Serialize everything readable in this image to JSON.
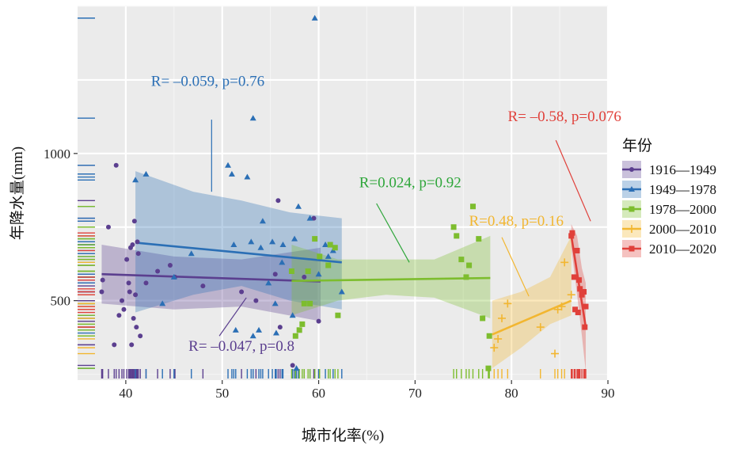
{
  "chart_data": {
    "type": "scatter",
    "title": "",
    "xlabel": "城市化率(%)",
    "ylabel": "年降水量(mm)",
    "xlim": [
      35,
      90
    ],
    "ylim": [
      230,
      1500
    ],
    "xticks": [
      40,
      50,
      60,
      70,
      80,
      90
    ],
    "yticks": [
      500,
      1000
    ],
    "x_tick_labels": [
      "40",
      "50",
      "60",
      "70",
      "80",
      "90"
    ],
    "y_tick_labels": [
      "500",
      "1000"
    ],
    "grid": true,
    "legend": {
      "title": "年份",
      "position": "right"
    },
    "series": [
      {
        "name": "1916—1949",
        "color": "#5b3f8f",
        "marker": "circle",
        "points": [
          [
            37.5,
            530
          ],
          [
            37.6,
            570
          ],
          [
            38.2,
            750
          ],
          [
            38.8,
            350
          ],
          [
            39,
            960
          ],
          [
            39.3,
            450
          ],
          [
            39.6,
            500
          ],
          [
            39.8,
            470
          ],
          [
            40.1,
            640
          ],
          [
            40.3,
            560
          ],
          [
            40.4,
            530
          ],
          [
            40.5,
            680
          ],
          [
            40.6,
            350
          ],
          [
            40.7,
            690
          ],
          [
            40.8,
            440
          ],
          [
            40.9,
            770
          ],
          [
            41.0,
            520
          ],
          [
            41.1,
            410
          ],
          [
            41.2,
            700
          ],
          [
            41.5,
            380
          ],
          [
            43.3,
            600
          ],
          [
            44.6,
            620
          ],
          [
            45.1,
            580
          ],
          [
            48.0,
            550
          ],
          [
            52.0,
            530
          ],
          [
            53.5,
            500
          ],
          [
            55.5,
            590
          ],
          [
            55.8,
            840
          ],
          [
            56.0,
            410
          ],
          [
            57.3,
            280
          ],
          [
            58.5,
            580
          ],
          [
            59.5,
            780
          ],
          [
            60.0,
            430
          ],
          [
            41.3,
            660
          ],
          [
            42.1,
            560
          ]
        ],
        "fit": {
          "x": [
            37.5,
            60.2
          ],
          "y": [
            590,
            565
          ]
        },
        "ci": {
          "x": [
            37.5,
            45,
            52,
            60.2
          ],
          "upper": [
            690,
            650,
            640,
            680
          ],
          "lower": [
            490,
            470,
            480,
            430
          ]
        }
      },
      {
        "name": "1949—1978",
        "color": "#2b6fb5",
        "marker": "triangle",
        "points": [
          [
            41.0,
            910
          ],
          [
            42.1,
            930
          ],
          [
            43.8,
            490
          ],
          [
            45.0,
            580
          ],
          [
            46.8,
            660
          ],
          [
            50.6,
            960
          ],
          [
            51.0,
            930
          ],
          [
            51.2,
            690
          ],
          [
            51.4,
            400
          ],
          [
            52.6,
            920
          ],
          [
            53.0,
            700
          ],
          [
            53.2,
            380
          ],
          [
            53.2,
            1120
          ],
          [
            53.8,
            400
          ],
          [
            54.0,
            680
          ],
          [
            54.2,
            770
          ],
          [
            54.8,
            560
          ],
          [
            55.2,
            700
          ],
          [
            55.5,
            490
          ],
          [
            55.6,
            390
          ],
          [
            56.2,
            630
          ],
          [
            56.3,
            690
          ],
          [
            57.3,
            450
          ],
          [
            57.5,
            710
          ],
          [
            57.9,
            820
          ],
          [
            59.1,
            780
          ],
          [
            59.6,
            1460
          ],
          [
            60.0,
            590
          ],
          [
            60.7,
            690
          ],
          [
            61.0,
            650
          ],
          [
            61.5,
            670
          ],
          [
            62.4,
            530
          ],
          [
            57.7,
            270
          ]
        ],
        "fit": {
          "x": [
            41.0,
            62.4
          ],
          "y": [
            697,
            630
          ]
        },
        "ci": {
          "x": [
            41.0,
            47,
            52,
            57,
            62.4
          ],
          "upper": [
            940,
            870,
            840,
            800,
            780
          ],
          "lower": [
            460,
            520,
            550,
            500,
            470
          ]
        }
      },
      {
        "name": "1978—2000",
        "color": "#7dbd2e",
        "marker": "square",
        "points": [
          [
            57.2,
            600
          ],
          [
            57.6,
            380
          ],
          [
            58.0,
            400
          ],
          [
            58.3,
            420
          ],
          [
            58.5,
            490
          ],
          [
            58.9,
            600
          ],
          [
            59.1,
            490
          ],
          [
            59.6,
            710
          ],
          [
            60.1,
            650
          ],
          [
            61.0,
            620
          ],
          [
            61.2,
            690
          ],
          [
            61.7,
            680
          ],
          [
            62.0,
            450
          ],
          [
            74.0,
            750
          ],
          [
            74.3,
            720
          ],
          [
            74.8,
            640
          ],
          [
            75.3,
            580
          ],
          [
            75.6,
            620
          ],
          [
            76.0,
            820
          ],
          [
            76.6,
            710
          ],
          [
            77.0,
            440
          ],
          [
            77.6,
            270
          ],
          [
            77.7,
            380
          ]
        ],
        "fit": {
          "x": [
            57.2,
            77.8
          ],
          "y": [
            567,
            577
          ]
        },
        "ci": {
          "x": [
            57.2,
            62,
            67,
            72,
            77.8
          ],
          "upper": [
            690,
            640,
            640,
            640,
            720
          ],
          "lower": [
            450,
            500,
            520,
            510,
            440
          ]
        }
      },
      {
        "name": "2000—2010",
        "color": "#f2b630",
        "marker": "plus",
        "points": [
          [
            78.2,
            340
          ],
          [
            78.6,
            370
          ],
          [
            79.0,
            440
          ],
          [
            79.6,
            490
          ],
          [
            83.0,
            410
          ],
          [
            84.5,
            320
          ],
          [
            84.8,
            470
          ],
          [
            85.2,
            480
          ],
          [
            85.5,
            630
          ],
          [
            86.2,
            520
          ]
        ],
        "fit": {
          "x": [
            78.0,
            86.2
          ],
          "y": [
            385,
            500
          ]
        },
        "ci": {
          "x": [
            78.0,
            81,
            84,
            86.2
          ],
          "upper": [
            500,
            530,
            580,
            720
          ],
          "lower": [
            270,
            340,
            420,
            450
          ]
        }
      },
      {
        "name": "2010—2020",
        "color": "#e0403a",
        "marker": "square",
        "points": [
          [
            86.2,
            720
          ],
          [
            86.3,
            730
          ],
          [
            86.5,
            580
          ],
          [
            86.6,
            470
          ],
          [
            86.8,
            670
          ],
          [
            87.0,
            570
          ],
          [
            87.1,
            540
          ],
          [
            87.3,
            520
          ],
          [
            87.5,
            530
          ],
          [
            87.6,
            410
          ],
          [
            87.7,
            480
          ],
          [
            86.9,
            460
          ]
        ],
        "fit": {
          "x": [
            86.2,
            87.7
          ],
          "y": [
            720,
            410
          ]
        },
        "ci": {
          "x": [
            86.2,
            86.8,
            87.3,
            87.7
          ],
          "upper": [
            760,
            720,
            610,
            560
          ],
          "lower": [
            680,
            520,
            380,
            260
          ]
        }
      }
    ],
    "annotations": [
      {
        "text": "R= –0.059, p=0.76",
        "color": "#2b6fb5",
        "x": 48.5,
        "y": 1230,
        "line": [
          [
            48.9,
            1115
          ],
          [
            48.9,
            870
          ]
        ]
      },
      {
        "text": "R= –0.047, p=0.8",
        "color": "#5b3f8f",
        "x": 52,
        "y": 330,
        "line": [
          [
            49.7,
            380
          ],
          [
            52.5,
            510
          ]
        ]
      },
      {
        "text": "R=0.024, p=0.92",
        "color": "#2ea63a",
        "x": 69.5,
        "y": 885,
        "line": [
          [
            66,
            830
          ],
          [
            69.4,
            630
          ]
        ]
      },
      {
        "text": "R=0.48, p=0.16",
        "color": "#f2b630",
        "x": 80.5,
        "y": 755,
        "line": [
          [
            79,
            715
          ],
          [
            81.8,
            515
          ]
        ]
      },
      {
        "text": "R= –0.58, p=0.076",
        "color": "#e0403a",
        "x": 85.5,
        "y": 1110,
        "line": [
          [
            84.6,
            1045
          ],
          [
            88.2,
            770
          ]
        ]
      }
    ],
    "rug_x_colors": "series",
    "rug_y_color": "series"
  }
}
